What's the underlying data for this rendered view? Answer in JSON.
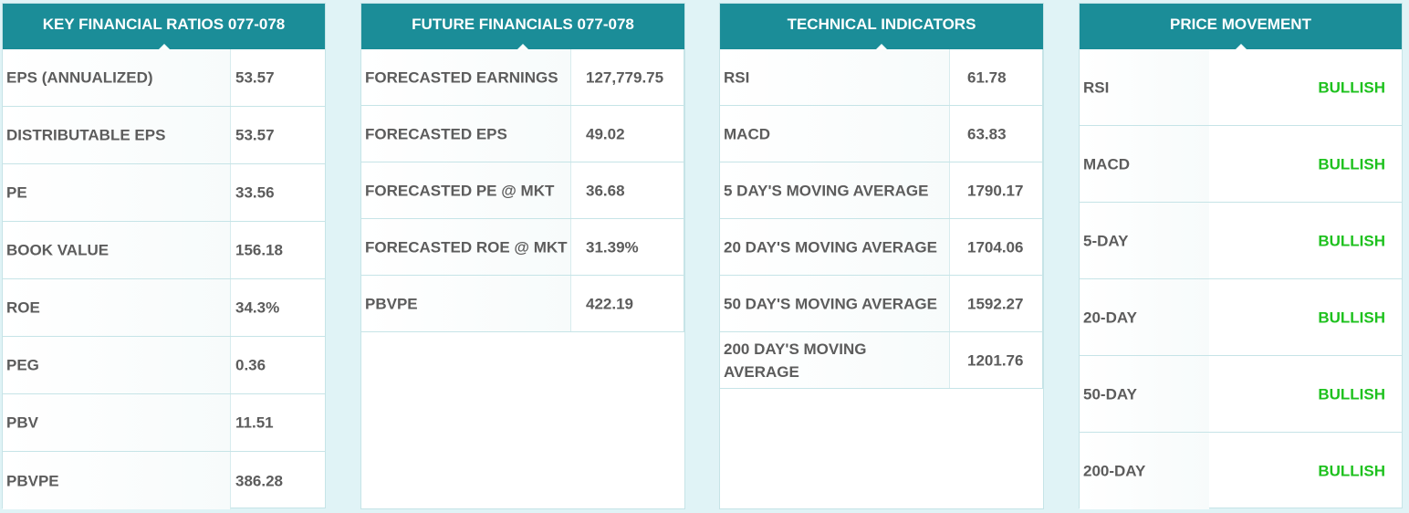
{
  "panels": {
    "key": {
      "title": "KEY FINANCIAL RATIOS 077-078",
      "rows": [
        {
          "label": "EPS (ANNUALIZED)",
          "value": "53.57"
        },
        {
          "label": "DISTRIBUTABLE EPS",
          "value": "53.57"
        },
        {
          "label": "PE",
          "value": "33.56"
        },
        {
          "label": "BOOK VALUE",
          "value": "156.18"
        },
        {
          "label": "ROE",
          "value": "34.3%"
        },
        {
          "label": "PEG",
          "value": "0.36"
        },
        {
          "label": "PBV",
          "value": "11.51"
        },
        {
          "label": "PBVPE",
          "value": "386.28"
        }
      ]
    },
    "future": {
      "title": "FUTURE FINANCIALS 077-078",
      "rows": [
        {
          "label": "FORECASTED EARNINGS",
          "value": "127,779.75"
        },
        {
          "label": "FORECASTED EPS",
          "value": "49.02"
        },
        {
          "label": "FORECASTED PE @ MKT",
          "value": "36.68"
        },
        {
          "label": "FORECASTED ROE @ MKT",
          "value": "31.39%"
        },
        {
          "label": "PBVPE",
          "value": "422.19"
        }
      ]
    },
    "technical": {
      "title": "TECHNICAL INDICATORS",
      "rows": [
        {
          "label": "RSI",
          "value": "61.78"
        },
        {
          "label": "MACD",
          "value": "63.83"
        },
        {
          "label": "5 DAY'S MOVING AVERAGE",
          "value": "1790.17"
        },
        {
          "label": "20 DAY'S MOVING AVERAGE",
          "value": "1704.06"
        },
        {
          "label": "50 DAY'S MOVING AVERAGE",
          "value": "1592.27"
        },
        {
          "label": "200 DAY'S MOVING AVERAGE",
          "value": "1201.76"
        }
      ]
    },
    "price": {
      "title": "PRICE MOVEMENT",
      "rows": [
        {
          "label": "RSI",
          "value": "BULLISH"
        },
        {
          "label": "MACD",
          "value": "BULLISH"
        },
        {
          "label": "5-DAY",
          "value": "BULLISH"
        },
        {
          "label": "20-DAY",
          "value": "BULLISH"
        },
        {
          "label": "50-DAY",
          "value": "BULLISH"
        },
        {
          "label": "200-DAY",
          "value": "BULLISH"
        }
      ]
    }
  },
  "colors": {
    "header_bg": "#1b8d98",
    "bullish": "#1ec11e",
    "page_bg": "#e0f3f6"
  }
}
